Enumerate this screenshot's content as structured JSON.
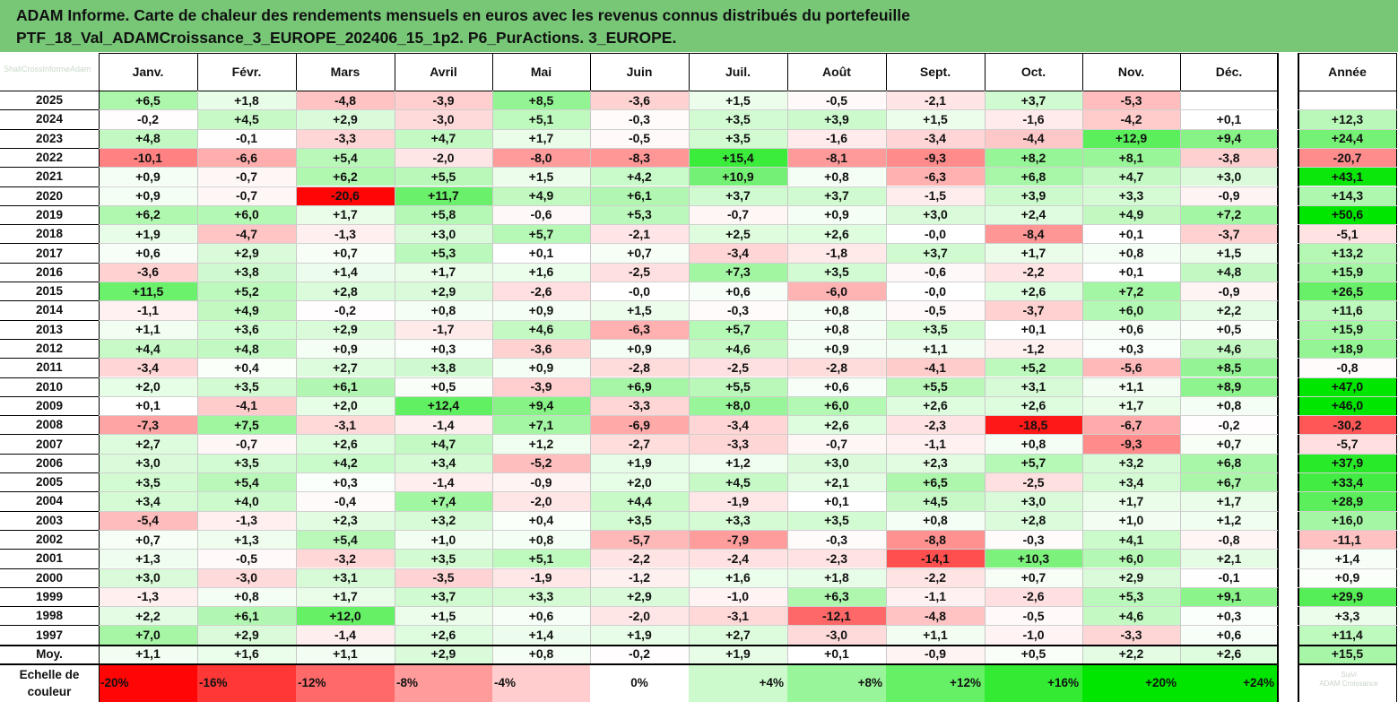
{
  "title": {
    "line1": "ADAM Informe. Carte de chaleur des rendements mensuels en euros avec les revenus connus distribués du portefeuille",
    "line2": "PTF_18_Val_ADAMCroissance_3_EUROPE_202406_15_1p2. P6_PurActions. 3_EUROPE."
  },
  "watermark": "ShallCrossInformeAdam",
  "watermark2": [
    "Suivi",
    "ADAM Croissance"
  ],
  "colors": {
    "header_bg": "#77c777",
    "neg_max": "#ff0000",
    "pos_max": "#00e600",
    "zero": "#ffffff"
  },
  "chart_data": {
    "type": "heatmap",
    "title": "Carte de chaleur des rendements mensuels en euros",
    "months": [
      "Janv.",
      "Févr.",
      "Mars",
      "Avril",
      "Mai",
      "Juin",
      "Juil.",
      "Août",
      "Sept.",
      "Oct.",
      "Nov.",
      "Déc."
    ],
    "annual_label": "Année",
    "average_label": "Moy.",
    "rows": [
      {
        "year": "2025",
        "values": [
          "+6,5",
          "+1,8",
          "-4,8",
          "-3,9",
          "+8,5",
          "-3,6",
          "+1,5",
          "-0,5",
          "-2,1",
          "+3,7",
          "-5,3",
          ""
        ],
        "annual": ""
      },
      {
        "year": "2024",
        "values": [
          "-0,2",
          "+4,5",
          "+2,9",
          "-3,0",
          "+5,1",
          "-0,3",
          "+3,5",
          "+3,9",
          "+1,5",
          "-1,6",
          "-4,2",
          "+0,1"
        ],
        "annual": "+12,3"
      },
      {
        "year": "2023",
        "values": [
          "+4,8",
          "-0,1",
          "-3,3",
          "+4,7",
          "+1,7",
          "-0,5",
          "+3,5",
          "-1,6",
          "-3,4",
          "-4,4",
          "+12,9",
          "+9,4"
        ],
        "annual": "+24,4"
      },
      {
        "year": "2022",
        "values": [
          "-10,1",
          "-6,6",
          "+5,4",
          "-2,0",
          "-8,0",
          "-8,3",
          "+15,4",
          "-8,1",
          "-9,3",
          "+8,2",
          "+8,1",
          "-3,8"
        ],
        "annual": "-20,7"
      },
      {
        "year": "2021",
        "values": [
          "+0,9",
          "-0,7",
          "+6,2",
          "+5,5",
          "+1,5",
          "+4,2",
          "+10,9",
          "+0,8",
          "-6,3",
          "+6,8",
          "+4,7",
          "+3,0"
        ],
        "annual": "+43,1"
      },
      {
        "year": "2020",
        "values": [
          "+0,9",
          "-0,7",
          "-20,6",
          "+11,7",
          "+4,9",
          "+6,1",
          "+3,7",
          "+3,7",
          "-1,5",
          "+3,9",
          "+3,3",
          "-0,9"
        ],
        "annual": "+14,3"
      },
      {
        "year": "2019",
        "values": [
          "+6,2",
          "+6,0",
          "+1,7",
          "+5,8",
          "-0,6",
          "+5,3",
          "-0,7",
          "+0,9",
          "+3,0",
          "+2,4",
          "+4,9",
          "+7,2"
        ],
        "annual": "+50,6"
      },
      {
        "year": "2018",
        "values": [
          "+1,9",
          "-4,7",
          "-1,3",
          "+3,0",
          "+5,7",
          "-2,1",
          "+2,5",
          "+2,6",
          "-0,0",
          "-8,4",
          "+0,1",
          "-3,7"
        ],
        "annual": "-5,1"
      },
      {
        "year": "2017",
        "values": [
          "+0,6",
          "+2,9",
          "+0,7",
          "+5,3",
          "+0,1",
          "+0,7",
          "-3,4",
          "-1,8",
          "+3,7",
          "+1,7",
          "+0,8",
          "+1,5"
        ],
        "annual": "+13,2"
      },
      {
        "year": "2016",
        "values": [
          "-3,6",
          "+3,8",
          "+1,4",
          "+1,7",
          "+1,6",
          "-2,5",
          "+7,3",
          "+3,5",
          "-0,6",
          "-2,2",
          "+0,1",
          "+4,8"
        ],
        "annual": "+15,9"
      },
      {
        "year": "2015",
        "values": [
          "+11,5",
          "+5,2",
          "+2,8",
          "+2,9",
          "-2,6",
          "-0,0",
          "+0,6",
          "-6,0",
          "-0,0",
          "+2,6",
          "+7,2",
          "-0,9"
        ],
        "annual": "+26,5"
      },
      {
        "year": "2014",
        "values": [
          "-1,1",
          "+4,9",
          "-0,2",
          "+0,8",
          "+0,9",
          "+1,5",
          "-0,3",
          "+0,8",
          "-0,5",
          "-3,7",
          "+6,0",
          "+2,2"
        ],
        "annual": "+11,6"
      },
      {
        "year": "2013",
        "values": [
          "+1,1",
          "+3,6",
          "+2,9",
          "-1,7",
          "+4,6",
          "-6,3",
          "+5,7",
          "+0,8",
          "+3,5",
          "+0,1",
          "+0,6",
          "+0,5"
        ],
        "annual": "+15,9"
      },
      {
        "year": "2012",
        "values": [
          "+4,4",
          "+4,8",
          "+0,9",
          "+0,3",
          "-3,6",
          "+0,9",
          "+4,6",
          "+0,9",
          "+1,1",
          "-1,2",
          "+0,3",
          "+4,6"
        ],
        "annual": "+18,9"
      },
      {
        "year": "2011",
        "values": [
          "-3,4",
          "+0,4",
          "+2,7",
          "+3,8",
          "+0,9",
          "-2,8",
          "-2,5",
          "-2,8",
          "-4,1",
          "+5,2",
          "-5,6",
          "+8,5"
        ],
        "annual": "-0,8"
      },
      {
        "year": "2010",
        "values": [
          "+2,0",
          "+3,5",
          "+6,1",
          "+0,5",
          "-3,9",
          "+6,9",
          "+5,5",
          "+0,6",
          "+5,5",
          "+3,1",
          "+1,1",
          "+8,9"
        ],
        "annual": "+47,0"
      },
      {
        "year": "2009",
        "values": [
          "+0,1",
          "-4,1",
          "+2,0",
          "+12,4",
          "+9,4",
          "-3,3",
          "+8,0",
          "+6,0",
          "+2,6",
          "+2,6",
          "+1,7",
          "+0,8"
        ],
        "annual": "+46,0"
      },
      {
        "year": "2008",
        "values": [
          "-7,3",
          "+7,5",
          "-3,1",
          "-1,4",
          "+7,1",
          "-6,9",
          "-3,4",
          "+2,6",
          "-2,3",
          "-18,5",
          "-6,7",
          "-0,2"
        ],
        "annual": "-30,2"
      },
      {
        "year": "2007",
        "values": [
          "+2,7",
          "-0,7",
          "+2,6",
          "+4,7",
          "+1,2",
          "-2,7",
          "-3,3",
          "-0,7",
          "-1,1",
          "+0,8",
          "-9,3",
          "+0,7"
        ],
        "annual": "-5,7"
      },
      {
        "year": "2006",
        "values": [
          "+3,0",
          "+3,5",
          "+4,2",
          "+3,4",
          "-5,2",
          "+1,9",
          "+1,2",
          "+3,0",
          "+2,3",
          "+5,7",
          "+3,2",
          "+6,8"
        ],
        "annual": "+37,9"
      },
      {
        "year": "2005",
        "values": [
          "+3,5",
          "+5,4",
          "+0,3",
          "-1,4",
          "-0,9",
          "+2,0",
          "+4,5",
          "+2,1",
          "+6,5",
          "-2,5",
          "+3,4",
          "+6,7"
        ],
        "annual": "+33,4"
      },
      {
        "year": "2004",
        "values": [
          "+3,4",
          "+4,0",
          "-0,4",
          "+7,4",
          "-2,0",
          "+4,4",
          "-1,9",
          "+0,1",
          "+4,5",
          "+3,0",
          "+1,7",
          "+1,7"
        ],
        "annual": "+28,9"
      },
      {
        "year": "2003",
        "values": [
          "-5,4",
          "-1,3",
          "+2,3",
          "+3,2",
          "+0,4",
          "+3,5",
          "+3,3",
          "+3,5",
          "+0,8",
          "+2,8",
          "+1,0",
          "+1,2"
        ],
        "annual": "+16,0"
      },
      {
        "year": "2002",
        "values": [
          "+0,7",
          "+1,3",
          "+5,4",
          "+1,0",
          "+0,8",
          "-5,7",
          "-7,9",
          "-0,3",
          "-8,8",
          "-0,3",
          "+4,1",
          "-0,8"
        ],
        "annual": "-11,1"
      },
      {
        "year": "2001",
        "values": [
          "+1,3",
          "-0,5",
          "-3,2",
          "+3,5",
          "+5,1",
          "-2,2",
          "-2,4",
          "-2,3",
          "-14,1",
          "+10,3",
          "+6,0",
          "+2,1"
        ],
        "annual": "+1,4"
      },
      {
        "year": "2000",
        "values": [
          "+3,0",
          "-3,0",
          "+3,1",
          "-3,5",
          "-1,9",
          "-1,2",
          "+1,6",
          "+1,8",
          "-2,2",
          "+0,7",
          "+2,9",
          "-0,1"
        ],
        "annual": "+0,9"
      },
      {
        "year": "1999",
        "values": [
          "-1,3",
          "+0,8",
          "+1,7",
          "+3,7",
          "+3,3",
          "+2,9",
          "-1,0",
          "+6,3",
          "-1,1",
          "-2,6",
          "+5,3",
          "+9,1"
        ],
        "annual": "+29,9"
      },
      {
        "year": "1998",
        "values": [
          "+2,2",
          "+6,1",
          "+12,0",
          "+1,5",
          "+0,6",
          "-2,0",
          "-3,1",
          "-12,1",
          "-4,8",
          "-0,5",
          "+4,6",
          "+0,3"
        ],
        "annual": "+3,3"
      },
      {
        "year": "1997",
        "values": [
          "+7,0",
          "+2,9",
          "-1,4",
          "+2,6",
          "+1,4",
          "+1,9",
          "+2,7",
          "-3,0",
          "+1,1",
          "-1,0",
          "-3,3",
          "+0,6"
        ],
        "annual": "+11,4"
      }
    ],
    "average": {
      "values": [
        "+1,1",
        "+1,6",
        "+1,1",
        "+2,9",
        "+0,8",
        "-0,2",
        "+1,9",
        "+0,1",
        "-0,9",
        "+0,5",
        "+2,2",
        "+2,6"
      ],
      "annual": "+15,5"
    },
    "legend": {
      "label": [
        "Echelle de",
        "couleur"
      ],
      "labels": [
        "-20%",
        "-16%",
        "-12%",
        "-8%",
        "-4%",
        "0%",
        "+4%",
        "+8%",
        "+12%",
        "+16%",
        "+20%",
        "+24%"
      ],
      "values": [
        -20,
        -16,
        -12,
        -8,
        -4,
        0,
        4,
        8,
        12,
        16,
        20,
        24
      ]
    }
  }
}
